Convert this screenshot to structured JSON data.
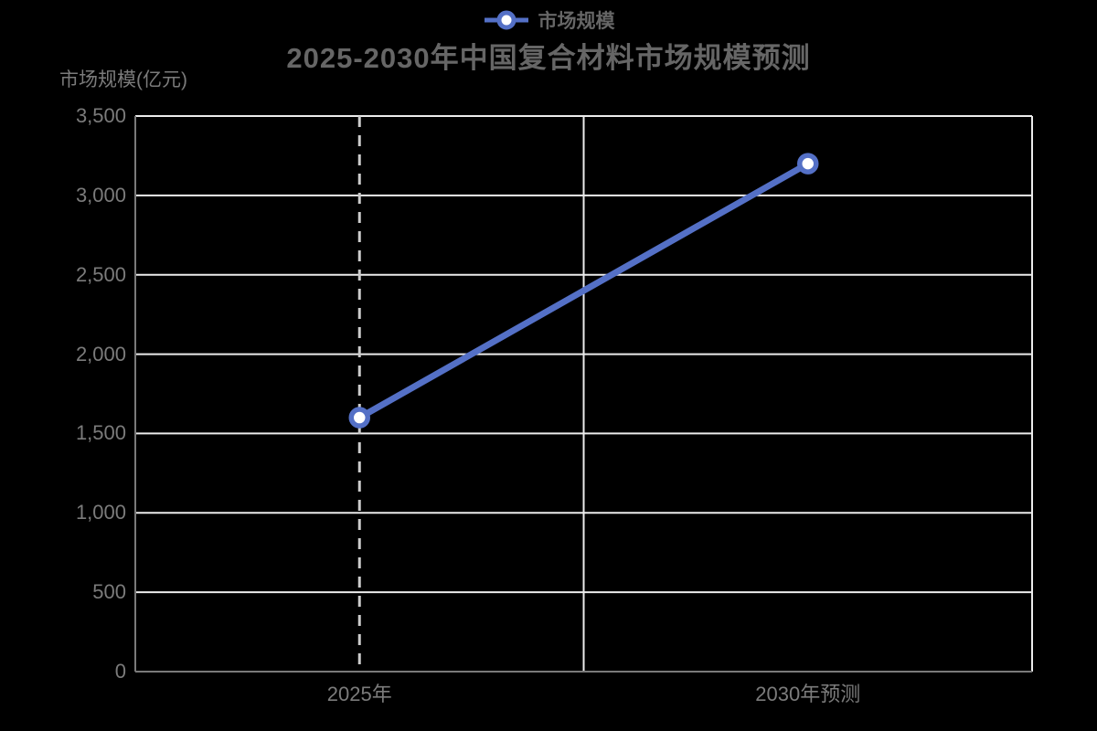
{
  "chart_data": {
    "type": "line",
    "title": "2025-2030年中国复合材料市场规模预测",
    "legend": "市场规模",
    "ylabel": "市场规模(亿元)",
    "xlabel": "",
    "categories": [
      "2025年",
      "2030年预测"
    ],
    "series": [
      {
        "name": "市场规模",
        "values": [
          1600,
          3200
        ]
      }
    ],
    "ylim": [
      0,
      3500
    ],
    "ytick_step": 500,
    "grid": true,
    "legend_position": "top-center",
    "axis_pointer_index": 0,
    "colors": {
      "background": "#000000",
      "line": "#5470C6",
      "marker_fill": "#ffffff",
      "grid": "#ececec",
      "axis": "#7a7a7a",
      "pointer": "#cccccc",
      "tick_label": "#7b7b7b",
      "axis_name": "#7b7b7b",
      "title": "#666666",
      "legend_text": "#666666"
    }
  }
}
